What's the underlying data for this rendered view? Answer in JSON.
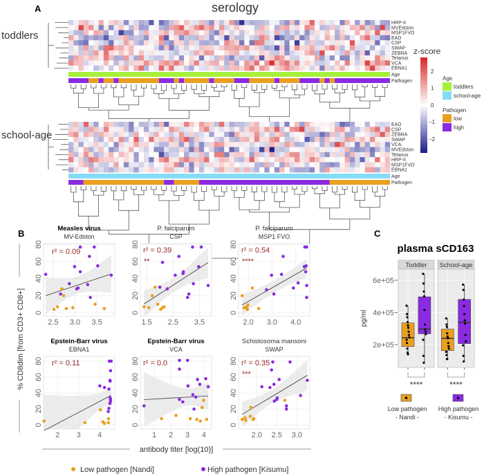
{
  "panel_a": {
    "letter": "A",
    "title": "serology",
    "toddlers": {
      "label": "toddlers",
      "rows": [
        "HRP-II",
        "MVEdston",
        "MSP1FVO",
        "EAD",
        "CSP",
        "SWAP",
        "ZEBRA",
        "Tetanus",
        "VCA",
        "EBNA1"
      ],
      "age_label": "Age",
      "pathogen_label": "Pathogen",
      "pathogen_runs": [
        [
          "high",
          4
        ],
        [
          "low",
          2
        ],
        [
          "high",
          1
        ],
        [
          "low",
          2
        ],
        [
          "high",
          1
        ],
        [
          "low",
          8
        ],
        [
          "high",
          3
        ],
        [
          "low",
          1
        ],
        [
          "high",
          1
        ],
        [
          "low",
          5
        ],
        [
          "high",
          1
        ],
        [
          "low",
          4
        ],
        [
          "high",
          3
        ],
        [
          "low",
          5
        ],
        [
          "high",
          1
        ],
        [
          "low",
          4
        ],
        [
          "high",
          4
        ],
        [
          "low",
          1
        ],
        [
          "high",
          1
        ],
        [
          "low",
          1
        ],
        [
          "high",
          11
        ]
      ]
    },
    "school_age": {
      "label": "school-age",
      "rows": [
        "EAD",
        "CSP",
        "ZEBRA",
        "SWAP",
        "VCA",
        "MVEdston",
        "Tetanus",
        "HRP-II",
        "MSP1FVO",
        "EBNA1"
      ],
      "age_label": "Age",
      "pathogen_label": "Pathogen",
      "pathogen_runs": [
        [
          "high",
          3
        ],
        [
          "low",
          16
        ],
        [
          "high",
          2
        ],
        [
          "low",
          5
        ],
        [
          "high",
          26
        ],
        [
          "low",
          12
        ]
      ]
    },
    "zscore_legend": {
      "title": "z-score",
      "ticks": [
        "2",
        "1",
        "0",
        "−1",
        "−2"
      ],
      "low_color": "#1a1a8c",
      "mid_color": "#ffffff",
      "high_color": "#d62728"
    },
    "age_legend": {
      "title": "Age",
      "items": [
        {
          "label": "toddlers",
          "color": "#a6f03c"
        },
        {
          "label": "school-age",
          "color": "#84dcf7"
        }
      ]
    },
    "pathogen_legend": {
      "title": "Pathogen",
      "items": [
        {
          "label": "low",
          "color": "#e9a020"
        },
        {
          "label": "high",
          "color": "#8a2be2"
        }
      ]
    }
  },
  "panel_b": {
    "letter": "B",
    "ylabel": "% CD8dim [from CD3+ CD8+]",
    "xlabel": "antibody titer [log(10)]",
    "legend": {
      "low": "Low pathogen [Nandi]",
      "high": "High pathogen [Kisumu]"
    },
    "colors": {
      "low": "#e9a020",
      "high": "#8a2be2"
    }
  },
  "chart_data": [
    {
      "type": "scatter",
      "title": "Measles virus",
      "subtitle": "MV-Edston",
      "annotation": "r² = 0.09",
      "stars": "",
      "xlim": [
        2.28,
        3.91
      ],
      "ylim": [
        -4,
        81
      ],
      "xticks": [
        "2.5",
        "3.0",
        "3.5"
      ],
      "yticks": [
        "0",
        "20",
        "40",
        "60",
        "80"
      ],
      "high": [
        [
          2.33,
          45
        ],
        [
          3.12,
          77
        ],
        [
          3.44,
          77
        ],
        [
          3.33,
          66
        ],
        [
          2.99,
          54
        ],
        [
          3.52,
          55
        ],
        [
          3.12,
          48
        ],
        [
          2.87,
          34
        ],
        [
          3.04,
          28
        ],
        [
          3.07,
          29
        ],
        [
          3.29,
          33
        ],
        [
          3.35,
          18
        ],
        [
          2.67,
          22
        ],
        [
          3.83,
          44
        ]
      ],
      "low": [
        [
          2.7,
          28
        ],
        [
          2.74,
          20
        ],
        [
          2.52,
          4
        ],
        [
          2.6,
          7
        ],
        [
          2.8,
          5
        ],
        [
          2.95,
          6
        ],
        [
          3.46,
          10
        ],
        [
          3.67,
          5
        ]
      ]
    },
    {
      "type": "scatter",
      "title": "P. falciparum",
      "subtitle": "CSP",
      "annotation": "r² = 0.39",
      "stars": "**",
      "xlim": [
        1.26,
        3.96
      ],
      "ylim": [
        -4,
        81
      ],
      "xticks": [
        "1.5",
        "2.5",
        "3.5"
      ],
      "yticks": [
        "0",
        "20",
        "40",
        "60",
        "80"
      ],
      "high": [
        [
          2.1,
          59
        ],
        [
          2.72,
          66
        ],
        [
          3.24,
          77
        ],
        [
          3.57,
          77
        ],
        [
          2.88,
          46
        ],
        [
          2.89,
          48
        ],
        [
          2.58,
          44
        ],
        [
          3.47,
          54
        ],
        [
          3.27,
          34
        ],
        [
          3.83,
          32
        ],
        [
          3.1,
          22
        ],
        [
          3.05,
          18
        ],
        [
          2.28,
          28
        ],
        [
          2.0,
          30
        ]
      ],
      "low": [
        [
          1.82,
          30
        ],
        [
          1.71,
          20
        ],
        [
          1.4,
          7
        ],
        [
          1.58,
          6
        ],
        [
          1.92,
          10
        ],
        [
          2.03,
          4
        ],
        [
          2.1,
          6
        ],
        [
          2.16,
          7
        ]
      ]
    },
    {
      "type": "scatter",
      "title": "P. falciparum",
      "subtitle": "MSP1 FVO",
      "annotation": "r² = 0.54",
      "stars": "****",
      "xlim": [
        1.59,
        4.59
      ],
      "ylim": [
        -4,
        81
      ],
      "xticks": [
        "2.0",
        "3.0",
        "4.0"
      ],
      "yticks": [
        "0",
        "20",
        "40",
        "60",
        "80"
      ],
      "high": [
        [
          4.38,
          77
        ],
        [
          4.46,
          77
        ],
        [
          3.47,
          66
        ],
        [
          4.44,
          55
        ],
        [
          4.36,
          54
        ],
        [
          4.42,
          48
        ],
        [
          2.98,
          44
        ],
        [
          3.4,
          45
        ],
        [
          4.1,
          35
        ],
        [
          3.9,
          29
        ],
        [
          4.46,
          32
        ],
        [
          4.46,
          18
        ],
        [
          2.77,
          27
        ],
        [
          3.08,
          22
        ]
      ],
      "low": [
        [
          1.74,
          20
        ],
        [
          2.17,
          29
        ],
        [
          2.44,
          5
        ],
        [
          1.83,
          6
        ],
        [
          1.93,
          7
        ],
        [
          1.98,
          9
        ],
        [
          1.96,
          4
        ],
        [
          1.9,
          6
        ]
      ]
    },
    {
      "type": "scatter",
      "title": "Epstein-Barr virus",
      "subtitle": "EBNA1",
      "annotation": "r² = 0.11",
      "stars": "",
      "xlim": [
        1.33,
        4.72
      ],
      "ylim": [
        -5,
        86
      ],
      "xticks": [
        "2",
        "3",
        "4"
      ],
      "yticks": [
        "0",
        "20",
        "40",
        "60",
        "80"
      ],
      "high": [
        [
          4.46,
          80
        ],
        [
          4.55,
          80
        ],
        [
          4.52,
          68
        ],
        [
          4.49,
          56
        ],
        [
          4.5,
          55
        ],
        [
          4.01,
          49
        ],
        [
          4.23,
          47
        ],
        [
          4.44,
          45
        ],
        [
          4.5,
          34
        ],
        [
          4.52,
          32
        ],
        [
          4.49,
          27
        ],
        [
          4.44,
          21
        ],
        [
          4.41,
          17
        ],
        [
          4.52,
          30
        ]
      ],
      "low": [
        [
          1.35,
          5
        ],
        [
          3.3,
          3
        ],
        [
          4.04,
          19
        ],
        [
          4.15,
          4
        ],
        [
          4.23,
          2
        ],
        [
          4.42,
          8
        ],
        [
          4.42,
          3
        ],
        [
          4.5,
          28
        ]
      ]
    },
    {
      "type": "scatter",
      "title": "Epstein-Barr virus",
      "subtitle": "VCA",
      "annotation": "r² = 0.0",
      "stars": "",
      "xlim": [
        0.16,
        4.46
      ],
      "ylim": [
        -5,
        86
      ],
      "xticks": [
        "1",
        "2",
        "3",
        "4"
      ],
      "yticks": [
        "0",
        "20",
        "40",
        "60",
        "80"
      ],
      "high": [
        [
          2.52,
          81
        ],
        [
          3.01,
          81
        ],
        [
          2.52,
          70
        ],
        [
          0.38,
          24
        ],
        [
          3.04,
          49
        ],
        [
          3.61,
          57
        ],
        [
          3.75,
          51
        ],
        [
          4.11,
          58
        ],
        [
          4.26,
          48
        ],
        [
          3.33,
          38
        ],
        [
          3.51,
          35
        ],
        [
          2.52,
          32
        ],
        [
          2.72,
          29
        ],
        [
          3.4,
          20
        ]
      ],
      "low": [
        [
          1.44,
          8
        ],
        [
          2.31,
          12
        ],
        [
          3.17,
          8
        ],
        [
          3.57,
          7
        ],
        [
          3.78,
          5
        ],
        [
          4.16,
          7
        ],
        [
          3.88,
          22
        ],
        [
          3.98,
          31
        ]
      ]
    },
    {
      "type": "scatter",
      "title": "Schistosoma mansoni",
      "subtitle": "SWAP",
      "annotation": "r² = 0.35",
      "stars": "***",
      "xlim": [
        1.55,
        3.32
      ],
      "ylim": [
        -5,
        86
      ],
      "xticks": [
        "2.0",
        "2.5",
        "3.0"
      ],
      "yticks": [
        "0",
        "20",
        "40",
        "60",
        "80"
      ],
      "high": [
        [
          2.4,
          79
        ],
        [
          2.83,
          79
        ],
        [
          2.37,
          69
        ],
        [
          2.56,
          57
        ],
        [
          2.13,
          48
        ],
        [
          2.33,
          47
        ],
        [
          2.43,
          51
        ],
        [
          3.26,
          56
        ],
        [
          3.09,
          37
        ],
        [
          2.44,
          30
        ],
        [
          2.5,
          32
        ],
        [
          2.51,
          34
        ],
        [
          2.74,
          24
        ],
        [
          2.74,
          20
        ]
      ],
      "low": [
        [
          1.86,
          22
        ],
        [
          1.64,
          7
        ],
        [
          1.71,
          9
        ],
        [
          1.73,
          6
        ],
        [
          1.84,
          11
        ],
        [
          1.91,
          7
        ],
        [
          1.93,
          8
        ],
        [
          2.7,
          31
        ]
      ]
    },
    {
      "type": "box",
      "letter": "C",
      "title": "plasma sCD163",
      "ylabel": "pg/ml",
      "ylim": [
        58000,
        669000
      ],
      "yticks": [
        {
          "value": 600000,
          "label": "6e+05"
        },
        {
          "value": 400000,
          "label": "4e+05"
        },
        {
          "value": 200000,
          "label": "2e+05"
        }
      ],
      "facets": [
        {
          "label": "Toddler",
          "stars": "****",
          "groups": [
            {
              "group": "low",
              "q1": 188000,
              "median": 242000,
              "q3": 335000,
              "min": 138000,
              "max": 442000,
              "points": [
                442000,
                390000,
                370000,
                340000,
                320000,
                305000,
                280000,
                260000,
                245000,
                230000,
                210000,
                175000,
                150000,
                140000
              ]
            },
            {
              "group": "high",
              "q1": 267000,
              "median": 296000,
              "q3": 497000,
              "min": 87000,
              "max": 640000,
              "points": [
                640000,
                580000,
                530000,
                500000,
                415000,
                325000,
                295000,
                280000,
                265000,
                230000,
                130000,
                87000
              ]
            }
          ]
        },
        {
          "label": "School-age",
          "stars": "****",
          "groups": [
            {
              "group": "low",
              "q1": 163000,
              "median": 239000,
              "q3": 296000,
              "min": 108000,
              "max": 363000,
              "points": [
                363000,
                325000,
                310000,
                270000,
                250000,
                240000,
                210000,
                190000,
                175000,
                155000,
                135000,
                110000,
                110000
              ]
            },
            {
              "group": "high",
              "q1": 206000,
              "median": 339000,
              "q3": 481000,
              "min": 94000,
              "max": 573000,
              "points": [
                573000,
                540000,
                480000,
                440000,
                390000,
                350000,
                330000,
                260000,
                220000,
                195000,
                130000,
                95000
              ]
            }
          ]
        }
      ],
      "legend": {
        "low": {
          "line1": "Low pathogen",
          "line2": "- Nandi -"
        },
        "high": {
          "line1": "High pathogen",
          "line2": "- Kisumu -"
        }
      }
    }
  ]
}
